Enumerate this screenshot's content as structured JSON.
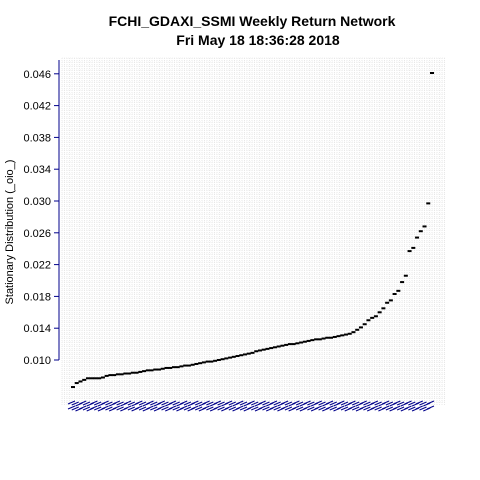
{
  "chart_data": {
    "type": "scatter",
    "title": "FCHI_GDAXI_SSMI  Weekly Return Network",
    "subtitle": "Fri May 18 18:36:28 2018",
    "ylabel": "Stationary Distribution (_oio_)",
    "xlabel": "",
    "ylim": [
      0.0066,
      0.0475
    ],
    "yticks": [
      "0.010",
      "0.014",
      "0.018",
      "0.022",
      "0.026",
      "0.030",
      "0.034",
      "0.038",
      "0.042",
      "0.046"
    ],
    "grid": true,
    "legend": "none",
    "marker_color": "#000000",
    "axis_color": "#00008b",
    "values": [
      0.0066,
      0.0071,
      0.0073,
      0.0075,
      0.0077,
      0.0077,
      0.0077,
      0.0077,
      0.0078,
      0.008,
      0.0081,
      0.0081,
      0.0082,
      0.0082,
      0.0083,
      0.0083,
      0.0084,
      0.0084,
      0.0085,
      0.0086,
      0.0087,
      0.0087,
      0.0088,
      0.0088,
      0.0089,
      0.009,
      0.009,
      0.0091,
      0.0091,
      0.0092,
      0.0093,
      0.0093,
      0.0094,
      0.0095,
      0.0096,
      0.0097,
      0.0098,
      0.0098,
      0.0099,
      0.01,
      0.0101,
      0.0102,
      0.0103,
      0.0104,
      0.0105,
      0.0106,
      0.0107,
      0.0108,
      0.0109,
      0.0111,
      0.0112,
      0.0113,
      0.0114,
      0.0115,
      0.0116,
      0.0117,
      0.0118,
      0.0119,
      0.012,
      0.012,
      0.0121,
      0.0122,
      0.0123,
      0.0124,
      0.0125,
      0.0126,
      0.0126,
      0.0127,
      0.0128,
      0.0128,
      0.0129,
      0.013,
      0.0131,
      0.0132,
      0.0133,
      0.0135,
      0.0138,
      0.0141,
      0.0145,
      0.015,
      0.0153,
      0.0155,
      0.016,
      0.0165,
      0.0172,
      0.0175,
      0.0183,
      0.0187,
      0.0198,
      0.0206,
      0.0237,
      0.0241,
      0.0254,
      0.0262,
      0.0268,
      0.0297,
      0.0461
    ]
  }
}
